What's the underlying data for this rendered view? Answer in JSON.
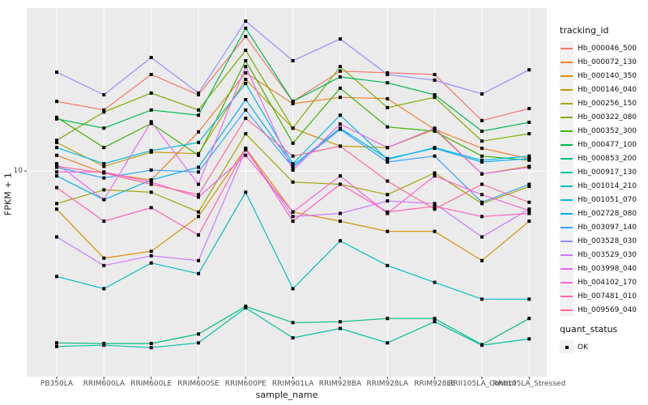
{
  "figure": {
    "x_axis_title": "sample_name",
    "y_axis_title": "FPKM + 1",
    "y_tick_label": "10",
    "colors": {
      "panel_bg": "#EBEBEB",
      "grid": "#FFFFFF",
      "tick_mark": "#333333",
      "tick_text": "#4D4D4D",
      "point": "#000000",
      "legend_key_bg": "#F2F2F2"
    }
  },
  "legend": {
    "tracking_title": "tracking_id",
    "quant_title": "quant_status",
    "quant_items": [
      {
        "label": "OK",
        "shape": "filled-black-square"
      }
    ]
  },
  "chart_data": {
    "type": "line",
    "title": "",
    "xlabel": "sample_name",
    "ylabel": "FPKM + 1",
    "yscale": "log10",
    "ylim": [
      1.15,
      55.5
    ],
    "yticks": [
      10
    ],
    "grid": "major-white-on-gray",
    "legend_position": "right",
    "marker": "filled-black-square",
    "categories": [
      "PB350LA",
      "RRIM600LA",
      "RRIM600LE",
      "RRIM600SE",
      "RRIM600PE",
      "RRIM901LA",
      "RRIM928BA",
      "RRIM928LA",
      "RRIM928LE",
      "RRII105LA_Control",
      "RRII105LA_Stressed"
    ],
    "series": [
      {
        "name": "Hb_000046_500",
        "color": "#F8766D",
        "values": [
          20.8,
          19.0,
          27.6,
          22.3,
          41.2,
          20.8,
          28.6,
          28.1,
          27.6,
          17.0,
          19.3
        ]
      },
      {
        "name": "Hb_000072_130",
        "color": "#EA8331",
        "values": [
          11.8,
          9.8,
          9.1,
          15.1,
          28.1,
          20.3,
          21.7,
          21.4,
          15.5,
          12.7,
          11.4
        ]
      },
      {
        "name": "Hb_000140_350",
        "color": "#D89000",
        "values": [
          6.7,
          4.0,
          4.3,
          6.2,
          12.7,
          6.5,
          5.9,
          5.3,
          5.3,
          3.9,
          5.9
        ]
      },
      {
        "name": "Hb_000146_040",
        "color": "#C09B00",
        "values": [
          13.5,
          10.5,
          12.2,
          12.0,
          26.2,
          15.7,
          13.0,
          12.8,
          15.5,
          9.7,
          10.5
        ]
      },
      {
        "name": "Hb_000256_150",
        "color": "#A3A500",
        "values": [
          7.1,
          8.2,
          8.0,
          6.5,
          14.8,
          8.9,
          8.7,
          7.8,
          9.8,
          7.1,
          8.5
        ]
      },
      {
        "name": "Hb_000322_080",
        "color": "#7CAE00",
        "values": [
          13.8,
          18.6,
          22.7,
          19.0,
          35.6,
          15.7,
          30.0,
          19.5,
          21.7,
          13.7,
          14.8
        ]
      },
      {
        "name": "Hb_000352_300",
        "color": "#39B600",
        "values": [
          17.6,
          12.8,
          16.5,
          11.8,
          31.9,
          13.4,
          23.9,
          15.9,
          15.2,
          11.7,
          11.2
        ]
      },
      {
        "name": "Hb_000477_100",
        "color": "#00BB4E",
        "values": [
          17.3,
          15.7,
          19.0,
          18.0,
          44.9,
          20.8,
          26.9,
          25.3,
          22.3,
          15.2,
          16.7
        ]
      },
      {
        "name": "Hb_000853_200",
        "color": "#00BF7D",
        "values": [
          1.64,
          1.63,
          1.63,
          1.8,
          2.41,
          2.03,
          2.05,
          2.12,
          2.12,
          1.61,
          2.12
        ]
      },
      {
        "name": "Hb_000917_130",
        "color": "#00C1A3",
        "values": [
          1.58,
          1.6,
          1.56,
          1.64,
          2.37,
          1.73,
          1.91,
          1.64,
          2.05,
          1.6,
          1.71
        ]
      },
      {
        "name": "Hb_001014_210",
        "color": "#00BFC4",
        "values": [
          3.3,
          2.9,
          3.8,
          3.4,
          8.0,
          2.9,
          4.8,
          3.7,
          3.1,
          2.6,
          2.6
        ]
      },
      {
        "name": "Hb_001051_070",
        "color": "#00BAE0",
        "values": [
          12.8,
          10.8,
          12.4,
          13.5,
          25.1,
          10.8,
          18.0,
          11.3,
          12.8,
          11.2,
          11.7
        ]
      },
      {
        "name": "Hb_002728_080",
        "color": "#00B0F6",
        "values": [
          9.5,
          7.4,
          9.1,
          10.4,
          21.2,
          10.6,
          15.7,
          11.4,
          12.7,
          11.0,
          11.4
        ]
      },
      {
        "name": "Hb_003097_140",
        "color": "#35A2FF",
        "values": [
          10.4,
          9.3,
          10.1,
          9.9,
          19.0,
          10.4,
          15.5,
          11.0,
          11.7,
          7.2,
          8.7
        ]
      },
      {
        "name": "Hb_003528_030",
        "color": "#9590FF",
        "values": [
          28.3,
          22.3,
          33.0,
          22.7,
          48.4,
          31.9,
          40.1,
          27.6,
          26.0,
          22.5,
          29.0
        ]
      },
      {
        "name": "Hb_003529_030",
        "color": "#C77CFF",
        "values": [
          5.0,
          3.7,
          4.1,
          3.9,
          12.5,
          6.2,
          6.4,
          7.3,
          7.1,
          5.0,
          6.7
        ]
      },
      {
        "name": "Hb_003998_040",
        "color": "#E76BF3",
        "values": [
          10.8,
          7.4,
          16.8,
          8.7,
          30.0,
          10.1,
          16.4,
          12.8,
          15.7,
          9.7,
          10.4
        ]
      },
      {
        "name": "Hb_004102_170",
        "color": "#FA62DB",
        "values": [
          9.9,
          9.9,
          8.9,
          7.6,
          11.8,
          6.5,
          9.5,
          6.4,
          9.5,
          7.8,
          6.6
        ]
      },
      {
        "name": "Hb_007481_010",
        "color": "#FF62BC",
        "values": [
          8.4,
          5.9,
          6.8,
          5.1,
          12.7,
          5.9,
          8.7,
          6.5,
          6.9,
          6.2,
          6.4
        ]
      },
      {
        "name": "Hb_009569_040",
        "color": "#FF6A98",
        "values": [
          10.5,
          9.8,
          8.7,
          7.8,
          17.4,
          11.7,
          13.0,
          9.0,
          6.7,
          8.7,
          7.2
        ]
      }
    ]
  }
}
